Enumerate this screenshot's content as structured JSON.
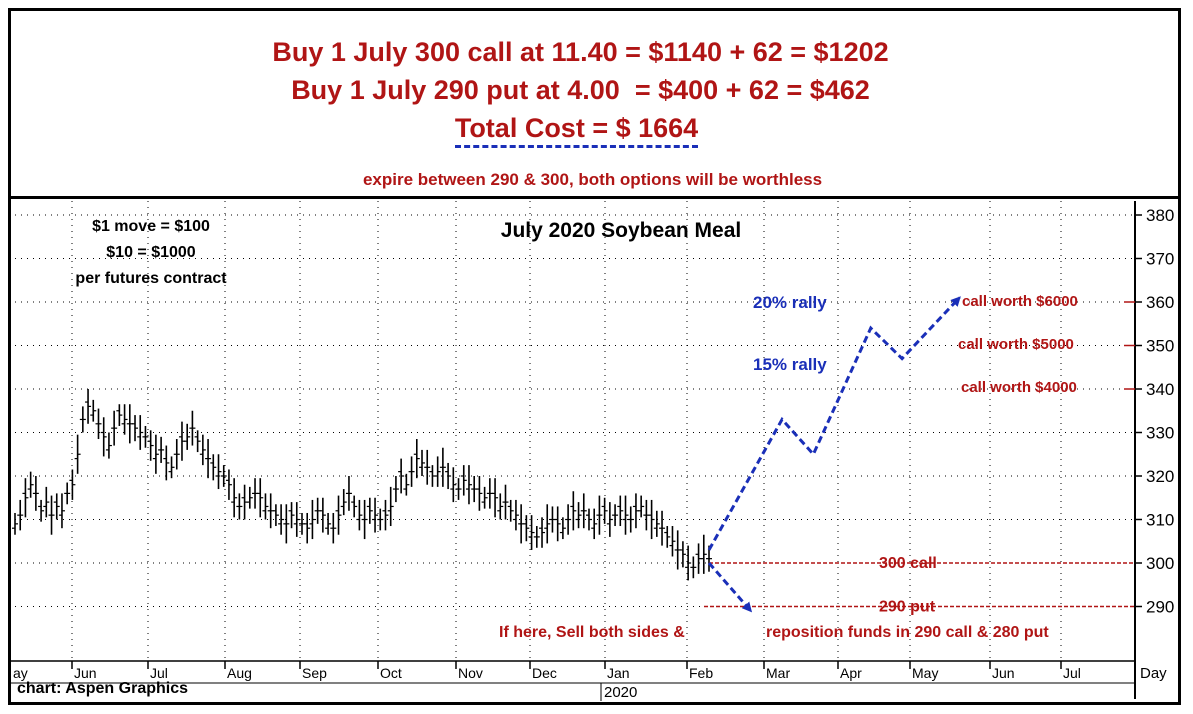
{
  "header": {
    "line1": "Buy 1 July 300 call at 11.40 = $1140 + 62 = $1202",
    "line2": "Buy 1 July 290 put at 4.00  = $400 + 62 = $462",
    "total": "Total Cost = $ 1664",
    "note": "expire between 290 & 300, both options will be worthless"
  },
  "chart_data": {
    "type": "bar",
    "subtype": "ohlc",
    "title": "July 2020 Soybean Meal",
    "notes": [
      "$1 move = $100",
      "$10 = $1000",
      "per futures contract"
    ],
    "source": "chart: Aspen Graphics",
    "y_axis": {
      "side": "right",
      "range": [
        280,
        382
      ],
      "ticks": [
        290,
        300,
        310,
        320,
        330,
        340,
        350,
        360,
        370,
        380
      ]
    },
    "x_axis": {
      "ticks": [
        "ay",
        "Jun",
        "Jul",
        "Aug",
        "Sep",
        "Oct",
        "Nov",
        "Dec",
        "Jan",
        "Feb",
        "Mar",
        "Apr",
        "May",
        "Jun",
        "Jul"
      ],
      "year_label": "2020",
      "unit_label": "Day"
    },
    "grid": true,
    "price_series": {
      "name": "",
      "points": [
        [
          0,
          309
        ],
        [
          1,
          311
        ],
        [
          2,
          315
        ],
        [
          3,
          318
        ],
        [
          4,
          316
        ],
        [
          5,
          312
        ],
        [
          6,
          314
        ],
        [
          7,
          311
        ],
        [
          8,
          313
        ],
        [
          9,
          312
        ],
        [
          10,
          316
        ],
        [
          11,
          318
        ],
        [
          12,
          325
        ],
        [
          13,
          333
        ],
        [
          14,
          336
        ],
        [
          15,
          335
        ],
        [
          16,
          332
        ],
        [
          17,
          329
        ],
        [
          18,
          327
        ],
        [
          19,
          331
        ],
        [
          20,
          334
        ],
        [
          21,
          333
        ],
        [
          22,
          332
        ],
        [
          23,
          331
        ],
        [
          24,
          330
        ],
        [
          25,
          329
        ],
        [
          26,
          327
        ],
        [
          27,
          325
        ],
        [
          28,
          326
        ],
        [
          29,
          323
        ],
        [
          30,
          322
        ],
        [
          31,
          325
        ],
        [
          32,
          328
        ],
        [
          33,
          329
        ],
        [
          34,
          331
        ],
        [
          35,
          328
        ],
        [
          36,
          326
        ],
        [
          37,
          324
        ],
        [
          38,
          322
        ],
        [
          39,
          321
        ],
        [
          40,
          320
        ],
        [
          41,
          318
        ],
        [
          42,
          315
        ],
        [
          43,
          313
        ],
        [
          44,
          314
        ],
        [
          45,
          315
        ],
        [
          46,
          316
        ],
        [
          47,
          315
        ],
        [
          48,
          313
        ],
        [
          49,
          312
        ],
        [
          50,
          311
        ],
        [
          51,
          310
        ],
        [
          52,
          309
        ],
        [
          53,
          311
        ],
        [
          54,
          310
        ],
        [
          55,
          309
        ],
        [
          56,
          308
        ],
        [
          57,
          310
        ],
        [
          58,
          312
        ],
        [
          59,
          311
        ],
        [
          60,
          309
        ],
        [
          61,
          308
        ],
        [
          62,
          311
        ],
        [
          63,
          314
        ],
        [
          64,
          316
        ],
        [
          65,
          313
        ],
        [
          66,
          311
        ],
        [
          67,
          310
        ],
        [
          68,
          312
        ],
        [
          69,
          311
        ],
        [
          70,
          310
        ],
        [
          71,
          311
        ],
        [
          72,
          313
        ],
        [
          73,
          317
        ],
        [
          74,
          320
        ],
        [
          75,
          318
        ],
        [
          76,
          321
        ],
        [
          77,
          324
        ],
        [
          78,
          323
        ],
        [
          79,
          322
        ],
        [
          80,
          320
        ],
        [
          81,
          321
        ],
        [
          82,
          322
        ],
        [
          83,
          320
        ],
        [
          84,
          318
        ],
        [
          85,
          317
        ],
        [
          86,
          319
        ],
        [
          87,
          318
        ],
        [
          88,
          317
        ],
        [
          89,
          316
        ],
        [
          90,
          315
        ],
        [
          91,
          316
        ],
        [
          92,
          315
        ],
        [
          93,
          313
        ],
        [
          94,
          314
        ],
        [
          95,
          312
        ],
        [
          96,
          311
        ],
        [
          97,
          309
        ],
        [
          98,
          308
        ],
        [
          99,
          307
        ],
        [
          100,
          306
        ],
        [
          101,
          307
        ],
        [
          102,
          309
        ],
        [
          103,
          310
        ],
        [
          104,
          309
        ],
        [
          105,
          308
        ],
        [
          106,
          310
        ],
        [
          107,
          312
        ],
        [
          108,
          311
        ],
        [
          109,
          312
        ],
        [
          110,
          310
        ],
        [
          111,
          309
        ],
        [
          112,
          311
        ],
        [
          113,
          312
        ],
        [
          114,
          310
        ],
        [
          115,
          311
        ],
        [
          116,
          312
        ],
        [
          117,
          311
        ],
        [
          118,
          310
        ],
        [
          119,
          312
        ],
        [
          120,
          313
        ],
        [
          121,
          311
        ],
        [
          122,
          310
        ],
        [
          123,
          309
        ],
        [
          124,
          308
        ],
        [
          125,
          306
        ],
        [
          126,
          305
        ],
        [
          127,
          303
        ],
        [
          128,
          302
        ],
        [
          129,
          300
        ],
        [
          130,
          299
        ],
        [
          131,
          301
        ],
        [
          132,
          302
        ],
        [
          133,
          301
        ]
      ],
      "x_domain": [
        0,
        133
      ]
    },
    "projection": {
      "color": "#1a2fb8",
      "path": [
        [
          133,
          303
        ],
        [
          147,
          333
        ],
        [
          153,
          325
        ],
        [
          164,
          354
        ],
        [
          170,
          347
        ],
        [
          181,
          361
        ]
      ],
      "down_path": [
        [
          133,
          300
        ],
        [
          141,
          289
        ]
      ]
    },
    "levels": [
      {
        "label": "300 call",
        "value": 300
      },
      {
        "label": "290 put",
        "value": 290
      }
    ],
    "annotations": {
      "rally20": "20% rally",
      "rally15": "15% rally",
      "call6000": "call worth $6000",
      "call5000": "call worth $5000",
      "call4000": "call worth $4000",
      "sell_left": "If here, Sell both sides &",
      "sell_right": "reposition funds in 290 call & 280 put"
    }
  }
}
